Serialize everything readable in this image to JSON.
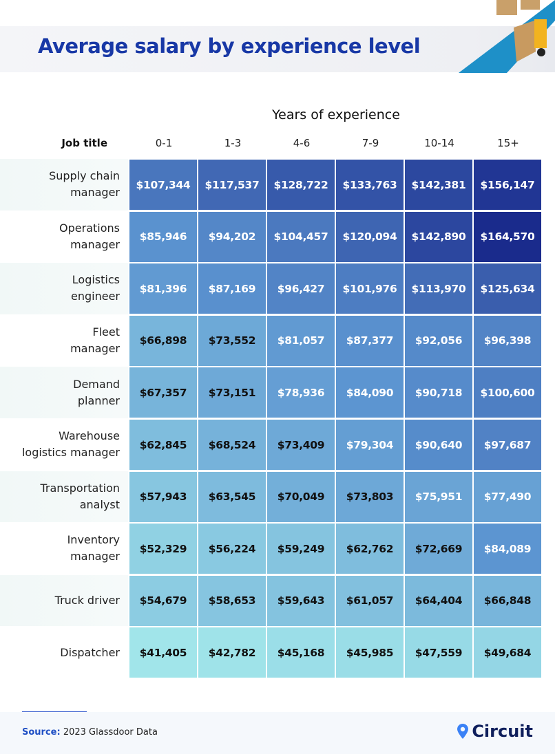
{
  "header": {
    "title": "Average salary by experience level"
  },
  "chart_data": {
    "type": "heatmap",
    "title": "Average salary by experience level",
    "xlabel": "Years of experience",
    "ylabel": "Job title",
    "categories": [
      "0-1",
      "1-3",
      "4-6",
      "7-9",
      "10-14",
      "15+"
    ],
    "rows": [
      {
        "label": "Supply chain\nmanager",
        "values": [
          107344,
          117537,
          128722,
          133763,
          142381,
          156147
        ]
      },
      {
        "label": "Operations\nmanager",
        "values": [
          85946,
          94202,
          104457,
          120094,
          142890,
          164570
        ]
      },
      {
        "label": "Logistics\nengineer",
        "values": [
          81396,
          87169,
          96427,
          101976,
          113970,
          125634
        ]
      },
      {
        "label": "Fleet\nmanager",
        "values": [
          66898,
          73552,
          81057,
          87377,
          92056,
          96398
        ]
      },
      {
        "label": "Demand\nplanner",
        "values": [
          67357,
          73151,
          78936,
          84090,
          90718,
          100600
        ]
      },
      {
        "label": "Warehouse\nlogistics manager",
        "values": [
          62845,
          68524,
          73409,
          79304,
          90640,
          97687
        ]
      },
      {
        "label": "Transportation\nanalyst",
        "values": [
          57943,
          63545,
          70049,
          73803,
          75951,
          77490
        ]
      },
      {
        "label": "Inventory\nmanager",
        "values": [
          52329,
          56224,
          59249,
          62762,
          72669,
          84089
        ]
      },
      {
        "label": "Truck driver",
        "values": [
          54679,
          58653,
          59643,
          61057,
          64404,
          66848
        ]
      },
      {
        "label": "Dispatcher",
        "values": [
          41405,
          42782,
          45168,
          45985,
          47559,
          49684
        ]
      }
    ],
    "color_scale": {
      "low": "#a2e6ea",
      "mid": "#5b93d0",
      "high": "#1a2a8c"
    },
    "value_format": "$#,###"
  },
  "footer": {
    "source_label": "Source:",
    "source_text": "2023 Glassdoor Data",
    "brand": "Circuit",
    "brand_color": "#3b82f6"
  }
}
